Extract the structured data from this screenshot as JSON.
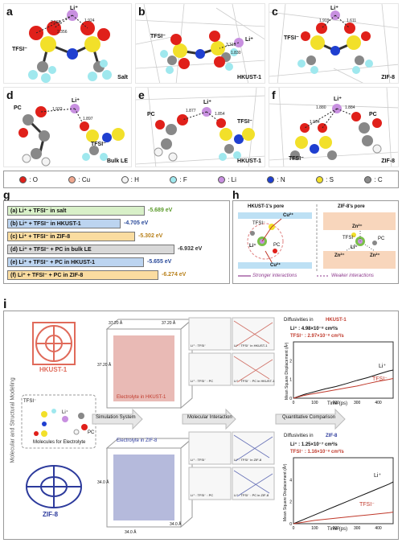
{
  "panels_top": [
    {
      "letter": "a",
      "title": "Salt",
      "tfsi": "TFSI⁻",
      "li": "Li⁺",
      "d1": "2.568",
      "d2": "1.924",
      "d3": "2.356"
    },
    {
      "letter": "b",
      "title": "HKUST-1",
      "tfsi": "TFSI⁻",
      "li": "Li⁺",
      "d1": "3.116",
      "d2": "1.830"
    },
    {
      "letter": "c",
      "title": "ZIF-8",
      "tfsi": "TFSI⁻",
      "li": "Li⁺",
      "d1": "1.919",
      "d2": "1.611"
    }
  ],
  "panels_mid": [
    {
      "letter": "d",
      "title": "Bulk LE",
      "pc": "PC",
      "li": "Li⁺",
      "tfsi": "TFSI⁻",
      "d1": "1.933",
      "d2": "1.897"
    },
    {
      "letter": "e",
      "title": "HKUST-1",
      "pc": "PC",
      "li": "Li⁺",
      "tfsi": "TFSI⁻",
      "d1": "1.877",
      "d2": "1.854"
    },
    {
      "letter": "f",
      "title": "ZIF-8",
      "pc": "PC",
      "li": "Li⁺",
      "tfsi": "TFSI⁻",
      "d1": "1.880",
      "d2": "1.964",
      "d3": "1.884"
    }
  ],
  "legend": [
    {
      "label": ": O",
      "color": "#e0201a"
    },
    {
      "label": ": Cu",
      "color": "#f0a890"
    },
    {
      "label": ": H",
      "color": "#f4f4f4"
    },
    {
      "label": ": F",
      "color": "#9fe8ee"
    },
    {
      "label": ": Li",
      "color": "#c890e0"
    },
    {
      "label": ": N",
      "color": "#1f3fd0"
    },
    {
      "label": ": S",
      "color": "#f2e02a"
    },
    {
      "label": ": C",
      "color": "#8a8a8a"
    }
  ],
  "panel_g": {
    "letter": "g",
    "bars": [
      {
        "label": "(a)   Li⁺ + TFSI⁻ in salt",
        "value": "-5.689 eV",
        "energy": 5.689,
        "color": "#d8f0c8",
        "tcolor": "#5a9a2a"
      },
      {
        "label": "(b)   Li⁺ + TFSI⁻ in HKUST-1",
        "value": "-4.705 eV",
        "energy": 4.705,
        "color": "#bcd4f0",
        "tcolor": "#2a4a9a"
      },
      {
        "label": "(c)   Li⁺ + TFSI⁻ in ZIF-8",
        "value": "-5.302 eV",
        "energy": 5.302,
        "color": "#fadca0",
        "tcolor": "#b8801a"
      },
      {
        "label": "(d)   Li⁺ + TFSI⁻ + PC in bulk LE",
        "value": "-6.932 eV",
        "energy": 6.932,
        "color": "#d8d8d8",
        "tcolor": "#333333"
      },
      {
        "label": "(e)   Li⁺ + TFSI⁻ + PC in HKUST-1",
        "value": "-5.655 eV",
        "energy": 5.655,
        "color": "#bcd4f0",
        "tcolor": "#2a4a9a"
      },
      {
        "label": "(f)   Li⁺ + TFSI⁻ + PC in ZIF-8",
        "value": "-6.274 eV",
        "energy": 6.274,
        "color": "#fadca0",
        "tcolor": "#b8801a"
      }
    ]
  },
  "panel_h": {
    "letter": "h",
    "left_title": "HKUST-1's pore",
    "right_title": "ZIF-8's pore",
    "cu_top": "Cu²⁺",
    "cu_bot": "Cu²⁺",
    "zn1": "Zn²⁺",
    "zn2": "Zn²⁺",
    "zn3": "Zn²⁺",
    "tfsi_l": "TFSI⁻",
    "li_l": "Li⁺",
    "pc_l": "PC",
    "tfsi_r": "TFSI⁻",
    "li_r": "Li⁺",
    "pc_r": "PC",
    "strong": "Stronger interactions",
    "weak": "Weaker interactions"
  },
  "panel_i": {
    "letter": "i",
    "side_label": "Molecular and Structural Modeling",
    "hkust": "HKUST-1",
    "zif": "ZIF-8",
    "molecules_caption": "Molecules for Electrolyte",
    "tfsi": "TFSI⁻",
    "li": "Li⁺",
    "pc": "PC",
    "sim_system": "Simulation System",
    "mol_interaction": "Molecular Interaction",
    "quant": "Quantitative Comparison",
    "elec_hkust": "Electrolyte in HKUST-1",
    "elec_zif": "Electrolyte in ZIF-8",
    "box_dims_top": [
      "37.20 Å",
      "37.20 Å",
      "37.20 Å"
    ],
    "box_dims_bot": [
      "34.0 Å",
      "34.0 Å",
      "34.0 Å"
    ],
    "cells": [
      "Li⁺ : TFSI⁻",
      "Li⁺ : TFSI⁻ in HKUST-1",
      "Li⁺ : TFSI⁻ : PC",
      "Li⁺ : TFSI⁻ : PC in HKUST-1",
      "Li⁺ : TFSI⁻",
      "Li⁺ : TFSI⁻ in ZIF-8",
      "Li⁺ : TFSI⁻ : PC",
      "Li⁺ : TFSI⁻ : PC in ZIF-8"
    ]
  },
  "chart_data": [
    {
      "type": "line",
      "title_prefix": "Diffusivities in",
      "title_material": "HKUST-1",
      "li_text": "Li⁺ : 4.98×10⁻⁸ cm²/s",
      "tfsi_text": "TFSI⁻ : 2.97×10⁻⁸ cm²/s",
      "xlabel": "Time (ps)",
      "ylabel": "Mean Square Displacement (Å²)",
      "xlim": [
        0,
        470
      ],
      "ylim": [
        0,
        3
      ],
      "xticks": [
        0,
        100,
        200,
        300,
        400
      ],
      "yticks": [
        0,
        1,
        2
      ],
      "series": [
        {
          "name": "Li⁺",
          "color": "#111111",
          "x": [
            0,
            50,
            100,
            150,
            200,
            250,
            300,
            350,
            400,
            450,
            470
          ],
          "y": [
            0,
            0.2,
            0.35,
            0.5,
            0.62,
            0.78,
            0.95,
            1.1,
            1.28,
            1.45,
            1.5
          ]
        },
        {
          "name": "TFSI⁻",
          "color": "#c0392b",
          "x": [
            0,
            50,
            100,
            150,
            200,
            250,
            300,
            350,
            400,
            450,
            470
          ],
          "y": [
            0,
            0.15,
            0.25,
            0.35,
            0.45,
            0.55,
            0.65,
            0.78,
            0.9,
            1.0,
            1.05
          ]
        }
      ]
    },
    {
      "type": "line",
      "title_prefix": "Diffusivities in",
      "title_material": "ZIF-8",
      "li_text": "Li⁺ : 1.25×10⁻⁷ cm²/s",
      "tfsi_text": "TFSI⁻ : 1.16×10⁻⁸ cm²/s",
      "xlabel": "Time (ps)",
      "ylabel": "Mean Square Displacement (Å²)",
      "xlim": [
        0,
        470
      ],
      "ylim": [
        0,
        6
      ],
      "xticks": [
        0,
        100,
        200,
        300,
        400
      ],
      "yticks": [
        0,
        2,
        4
      ],
      "series": [
        {
          "name": "Li⁺",
          "color": "#111111",
          "x": [
            0,
            50,
            100,
            150,
            200,
            250,
            300,
            350,
            400,
            450,
            470
          ],
          "y": [
            0,
            0.4,
            0.8,
            1.2,
            1.6,
            2.0,
            2.4,
            2.8,
            3.2,
            3.6,
            3.8
          ]
        },
        {
          "name": "TFSI⁻",
          "color": "#c0392b",
          "x": [
            0,
            50,
            100,
            150,
            200,
            250,
            300,
            350,
            400,
            450,
            470
          ],
          "y": [
            0,
            0.15,
            0.3,
            0.4,
            0.5,
            0.6,
            0.7,
            0.8,
            0.9,
            1.0,
            1.05
          ]
        }
      ]
    }
  ]
}
